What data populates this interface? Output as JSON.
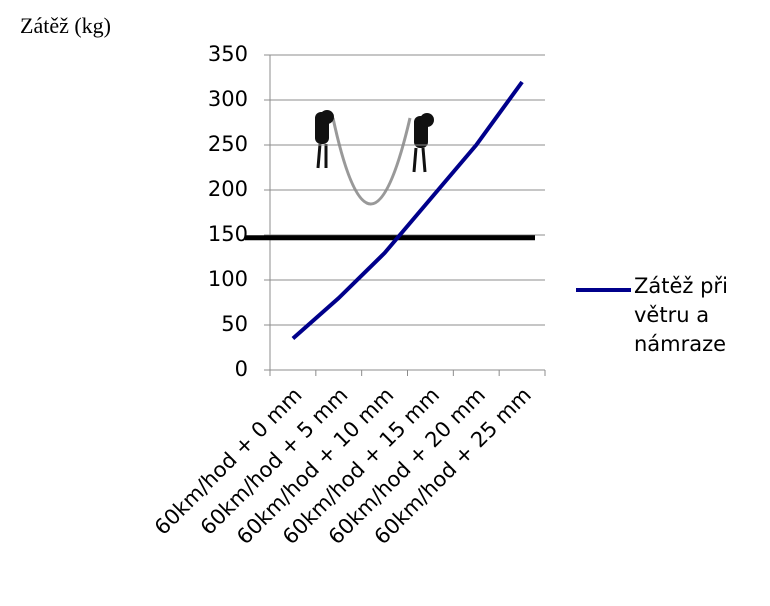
{
  "chart_data": {
    "type": "line",
    "y_label": "Zátěž (kg)",
    "categories": [
      "60km/hod + 0 mm",
      "60km/hod + 5 mm",
      "60km/hod + 10 mm",
      "60km/hod + 15 mm",
      "60km/hod + 20 mm",
      "60km/hod + 25 mm"
    ],
    "series": [
      {
        "name": "Zátěž při větru a námraze",
        "color": "#00008b",
        "values": [
          35,
          80,
          130,
          190,
          250,
          320
        ]
      }
    ],
    "reference_line": {
      "value": 147,
      "color": "#000000"
    },
    "ylim": [
      0,
      350
    ],
    "yticks": [
      0,
      50,
      100,
      150,
      200,
      250,
      300,
      350
    ],
    "grid": true,
    "legend": "right"
  }
}
